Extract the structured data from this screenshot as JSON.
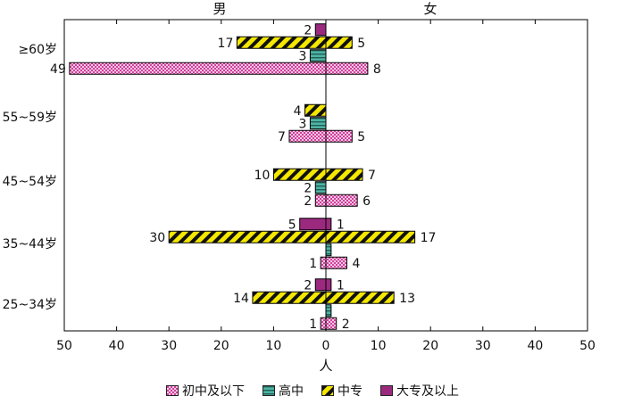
{
  "chart_data": {
    "type": "bar",
    "orientation": "horizontal-butterfly",
    "left_label": "男",
    "right_label": "女",
    "xlabel": "人",
    "xlim": [
      -50,
      50
    ],
    "x_ticks": [
      -50,
      -40,
      -30,
      -20,
      -10,
      0,
      10,
      20,
      30,
      40,
      50
    ],
    "x_tick_labels": [
      "50",
      "40",
      "30",
      "20",
      "10",
      "0",
      "10",
      "20",
      "30",
      "40",
      "50"
    ],
    "categories": [
      "≥60岁",
      "55~59岁",
      "45~54岁",
      "35~44岁",
      "25~34岁"
    ],
    "series": [
      {
        "name": "初中及以下",
        "color": "#f2b3dc",
        "pattern": "checker",
        "male": [
          49,
          7,
          2,
          1,
          1
        ],
        "female": [
          8,
          5,
          6,
          4,
          2
        ]
      },
      {
        "name": "高中",
        "color": "#4fb3a4",
        "pattern": "hlines",
        "male": [
          3,
          3,
          2,
          0,
          0
        ],
        "female": [
          0,
          0,
          0,
          1,
          1
        ]
      },
      {
        "name": "中专",
        "color": "#f5e800",
        "pattern": "diagonal",
        "male": [
          17,
          4,
          10,
          30,
          14
        ],
        "female": [
          5,
          0,
          7,
          17,
          13
        ]
      },
      {
        "name": "大专及以上",
        "color": "#9b2a7f",
        "pattern": "solid",
        "male": [
          2,
          0,
          0,
          5,
          2
        ],
        "female": [
          0,
          0,
          0,
          1,
          1
        ]
      }
    ],
    "labels": {
      "male": [
        [
          "49",
          "3",
          "17",
          "2"
        ],
        [
          "7",
          "3",
          "4",
          ""
        ],
        [
          "2",
          "2",
          "10",
          ""
        ],
        [
          "1",
          "",
          "30",
          "5"
        ],
        [
          "1",
          "",
          "14",
          "2"
        ]
      ],
      "female": [
        [
          "8",
          "",
          "5",
          ""
        ],
        [
          "5",
          "",
          "",
          ""
        ],
        [
          "6",
          "",
          "7",
          ""
        ],
        [
          "4",
          "",
          "17",
          "1"
        ],
        [
          "2",
          "",
          "13",
          "1"
        ]
      ]
    },
    "grid": false,
    "legend_position": "bottom"
  }
}
